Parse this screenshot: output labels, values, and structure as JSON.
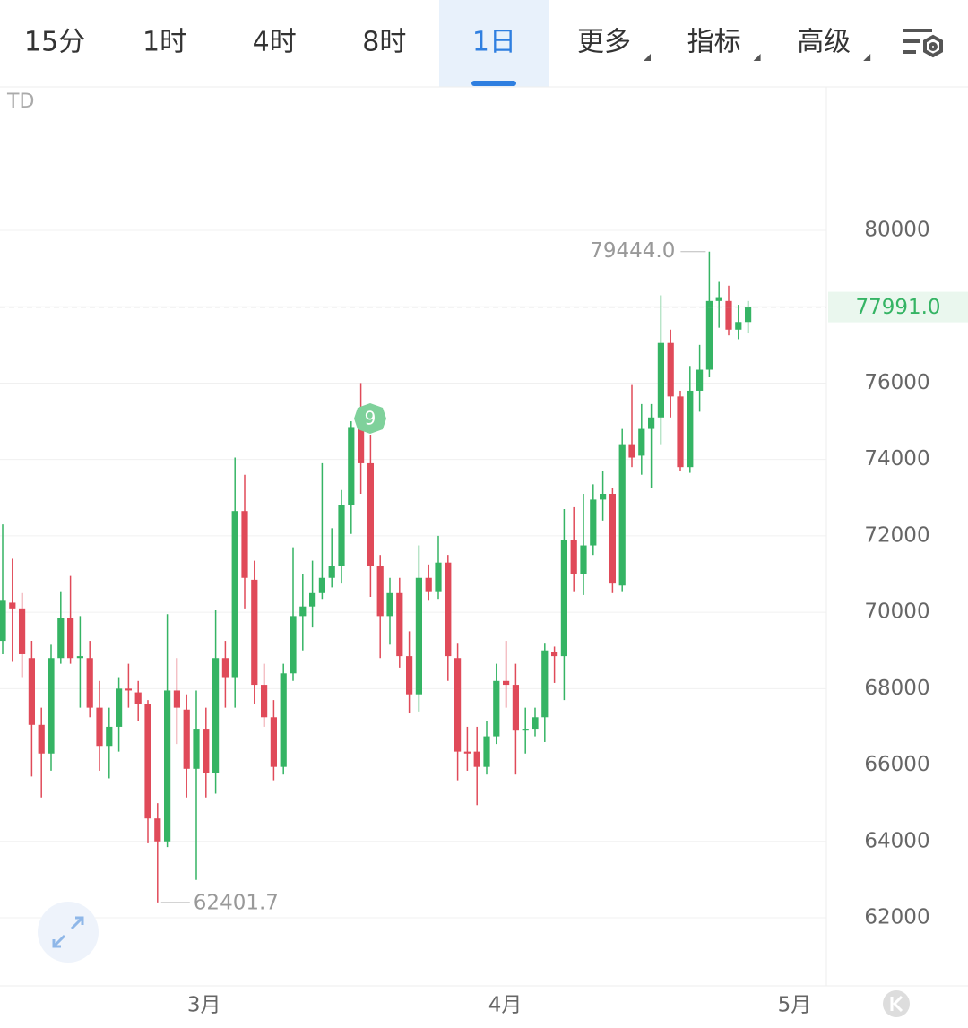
{
  "toolbar": {
    "tabs": [
      "15分",
      "1时",
      "4时",
      "8时",
      "1日",
      "更多",
      "指标",
      "高级"
    ],
    "active": 4
  },
  "chart_data": {
    "type": "candlestick",
    "indicator": "TD",
    "td_label": "9",
    "up_color": "#35b464",
    "down_color": "#e04a59",
    "open": [
      69250,
      70250,
      70100,
      68800,
      67050,
      66300,
      68800,
      69850,
      68800,
      68800,
      67500,
      66500,
      67000,
      68000,
      67900,
      67600,
      64600,
      64000,
      67950,
      67450,
      65900,
      66950,
      65800,
      68800,
      68300,
      72650,
      70850,
      68100,
      67250,
      65950,
      68400,
      69900,
      70150,
      70500,
      70900,
      71200,
      72800,
      74850,
      73900,
      71200,
      69900,
      70500,
      68850,
      67850,
      70900,
      70550,
      71300,
      68800,
      66350,
      66350,
      65950,
      66750,
      68200,
      68100,
      66900,
      66950,
      67250,
      68950,
      68850,
      71900,
      71000,
      71750,
      72950,
      73100,
      70700,
      74400,
      74100,
      74800,
      75100,
      77050,
      75650,
      73800,
      75800,
      76350,
      78150,
      78150,
      77400,
      77600
    ],
    "close": [
      70300,
      70100,
      68900,
      67050,
      66300,
      68800,
      69850,
      68800,
      68850,
      67500,
      66500,
      67000,
      68000,
      67950,
      67600,
      64600,
      64000,
      67950,
      67500,
      65900,
      66950,
      65800,
      68800,
      68300,
      72650,
      70900,
      68100,
      67250,
      65950,
      68400,
      69900,
      70150,
      70500,
      70900,
      71200,
      72800,
      74850,
      73900,
      71200,
      69900,
      70500,
      68850,
      67850,
      70900,
      70550,
      71300,
      68850,
      66350,
      66300,
      65950,
      66750,
      68200,
      68100,
      66900,
      66950,
      67250,
      69000,
      68850,
      71900,
      71000,
      71750,
      72950,
      73100,
      70750,
      74400,
      74050,
      74800,
      75100,
      77050,
      75650,
      73800,
      75800,
      76350,
      78150,
      78250,
      77400,
      77600,
      77991
    ],
    "high": [
      72300,
      71400,
      70500,
      69250,
      67500,
      69150,
      70550,
      70950,
      69900,
      69250,
      68200,
      67500,
      68300,
      68650,
      68200,
      67700,
      65000,
      69950,
      68800,
      67850,
      67950,
      67500,
      70050,
      69250,
      74050,
      73600,
      71350,
      68650,
      67700,
      68650,
      71700,
      71000,
      71350,
      73900,
      72200,
      73200,
      75000,
      76000,
      74650,
      71500,
      70900,
      70900,
      69500,
      71750,
      71250,
      72000,
      71500,
      69200,
      67000,
      67000,
      67150,
      68650,
      69250,
      68650,
      67500,
      67500,
      69200,
      69100,
      72700,
      72750,
      73100,
      73350,
      73700,
      73250,
      74800,
      75950,
      75450,
      75450,
      78300,
      77400,
      75800,
      76450,
      77000,
      79444,
      78650,
      78550,
      78050,
      78150
    ],
    "low": [
      68900,
      68700,
      68300,
      65700,
      65150,
      65850,
      68650,
      68650,
      67500,
      67250,
      65850,
      65650,
      66350,
      67500,
      67150,
      63950,
      62401.7,
      63850,
      66550,
      65150,
      62990,
      65150,
      65250,
      67500,
      67500,
      70100,
      67600,
      67000,
      65600,
      65750,
      68200,
      69000,
      69600,
      70350,
      70650,
      70750,
      72050,
      73100,
      70400,
      68800,
      69150,
      68550,
      67350,
      67400,
      70300,
      70350,
      68200,
      65600,
      65850,
      64950,
      65750,
      66550,
      67500,
      65750,
      66300,
      66750,
      66600,
      68150,
      67700,
      70550,
      70450,
      71500,
      72400,
      70500,
      70550,
      73800,
      73600,
      73250,
      74400,
      75100,
      73700,
      73650,
      75250,
      76150,
      77450,
      77250,
      77150,
      77300
    ],
    "ylim": [
      60216,
      83755
    ],
    "yticks": [
      62000,
      64000,
      66000,
      68000,
      70000,
      72000,
      74000,
      76000,
      78000,
      80000
    ],
    "ytick_labels_shown": [
      62000,
      64000,
      66000,
      68000,
      70000,
      72000,
      74000,
      76000,
      80000
    ],
    "xticks": [
      {
        "value": 20.8,
        "label": "3月"
      },
      {
        "value": 51.9,
        "label": "4月"
      },
      {
        "value": 81.8,
        "label": "5月"
      }
    ],
    "high_label": {
      "value": 79444,
      "label": "79444.0"
    },
    "low_label": 62401.7,
    "last_price": {
      "value": 77991,
      "label": "77991.0"
    },
    "grid": true
  }
}
